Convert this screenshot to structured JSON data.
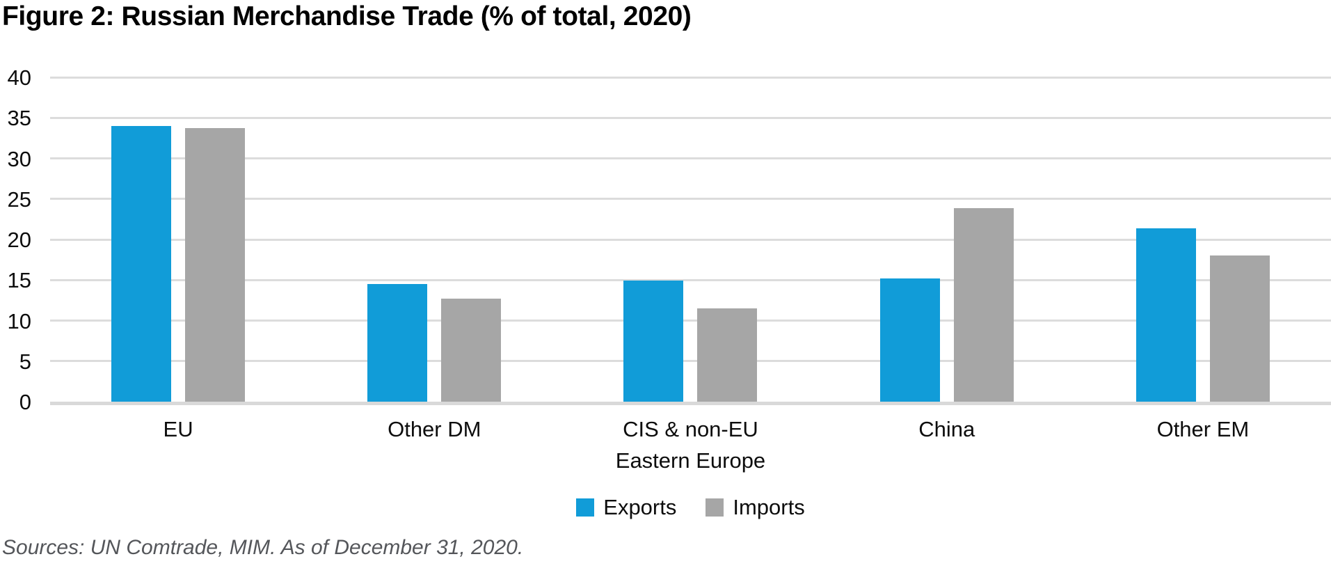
{
  "title": "Figure 2: Russian Merchandise Trade (% of total, 2020)",
  "source": "Sources: UN Comtrade, MIM. As of December 31, 2020.",
  "colors": {
    "exports": "#119CD8",
    "imports": "#A6A6A6",
    "gridline": "#DCDCDC",
    "axis_baseline": "#D9D9D9",
    "label_text": "#0d0d0d",
    "source_text": "#54565a"
  },
  "chart_data": {
    "type": "bar",
    "title": "Figure 2: Russian Merchandise Trade (% of total, 2020)",
    "categories": [
      "EU",
      "Other DM",
      "CIS & non-EU\nEastern Europe",
      "China",
      "Other EM"
    ],
    "series": [
      {
        "name": "Exports",
        "color": "#119CD8",
        "values": [
          34.0,
          14.5,
          14.9,
          15.2,
          21.4
        ]
      },
      {
        "name": "Imports",
        "color": "#A6A6A6",
        "values": [
          33.7,
          12.7,
          11.5,
          23.9,
          18.0
        ]
      }
    ],
    "xlabel": "",
    "ylabel": "",
    "ylim": [
      0,
      40
    ],
    "ytick_step": 5,
    "yticks": [
      0,
      5,
      10,
      15,
      20,
      25,
      30,
      35,
      40
    ],
    "grid": true,
    "legend_position": "bottom",
    "legend": [
      "Exports",
      "Imports"
    ]
  }
}
